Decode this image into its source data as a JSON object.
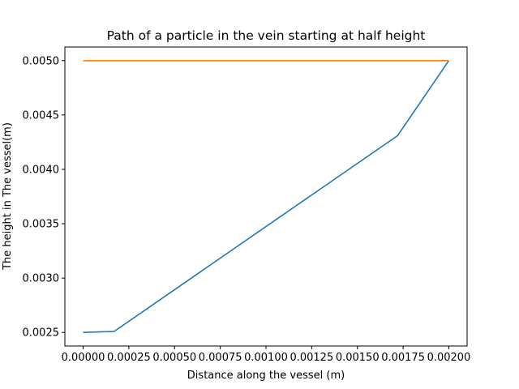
{
  "chart_data": {
    "type": "line",
    "title": "Path of a particle in the vein starting at half height",
    "xlabel": "Distance along the vessel (m)",
    "ylabel": "The height in The vessel(m)",
    "xlim": [
      -0.0001,
      0.0021
    ],
    "ylim": [
      0.002375,
      0.005125
    ],
    "xticks": [
      0.0,
      0.00025,
      0.0005,
      0.00075,
      0.001,
      0.00125,
      0.0015,
      0.00175,
      0.002
    ],
    "xtick_labels": [
      "0.00000",
      "0.00025",
      "0.00050",
      "0.00075",
      "0.00100",
      "0.00125",
      "0.00150",
      "0.00175",
      "0.00200"
    ],
    "yticks": [
      0.0025,
      0.003,
      0.0035,
      0.004,
      0.0045,
      0.005
    ],
    "ytick_labels": [
      "0.0025",
      "0.0030",
      "0.0035",
      "0.0040",
      "0.0045",
      "0.0050"
    ],
    "grid": false,
    "series": [
      {
        "color": "#1f77b4",
        "x": [
          0.0,
          0.00017,
          0.00172,
          0.002
        ],
        "y": [
          0.0025,
          0.00251,
          0.00431,
          0.005
        ]
      },
      {
        "color": "#ff7f0e",
        "x": [
          0.0,
          0.002
        ],
        "y": [
          0.005,
          0.005
        ]
      }
    ]
  }
}
